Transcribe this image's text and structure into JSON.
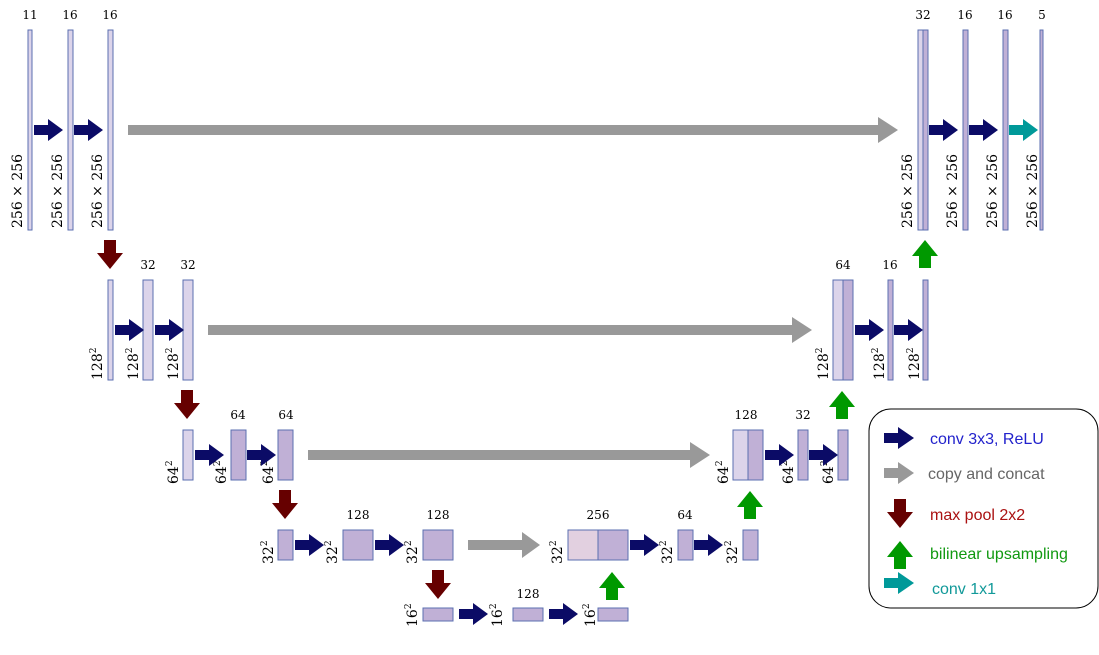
{
  "colors": {
    "conv": "#0b0b66",
    "copy": "#999999",
    "pool": "#660000",
    "up": "#009900",
    "conv1x1": "#009999",
    "block_light": "#dcd4ea",
    "block_mid": "#c0b0d6",
    "block_pale": "#e2d0e0",
    "block_edge": "#5b6fb0",
    "legend_conv": "#2222cc",
    "legend_copy": "#666666",
    "legend_pool": "#aa1111",
    "legend_up": "#119911",
    "legend_conv1x1": "#119999"
  },
  "channels": {
    "e1a": "11",
    "e1b": "16",
    "e1c": "16",
    "e2b": "32",
    "e2c": "32",
    "e3b": "64",
    "e3c": "64",
    "e4b": "128",
    "e4c": "128",
    "bt": "128",
    "d4": "256",
    "d4b": "64",
    "d3": "128",
    "d3b": "32",
    "d2": "64",
    "d2b": "16",
    "d1": "32",
    "d1b": "16",
    "d1c": "16",
    "out": "5"
  },
  "sizes": {
    "l1": "256 × 256",
    "l2_base": "128",
    "l3_base": "64",
    "l4_base": "32",
    "l5_base": "16",
    "exp": "2"
  },
  "legend": {
    "conv": "conv 3x3, ReLU",
    "copy": "copy and concat",
    "pool": "max pool 2x2",
    "up": "bilinear upsampling",
    "conv1x1": "conv 1x1"
  }
}
